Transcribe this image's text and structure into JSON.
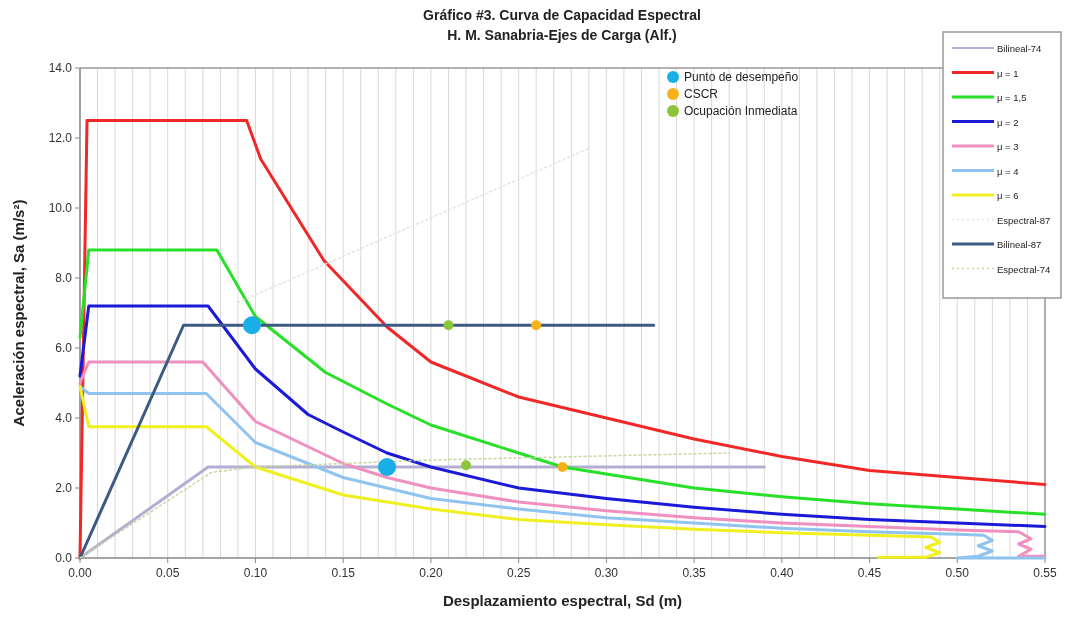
{
  "chart_data": {
    "type": "line",
    "title": "Gráfico #3. Curva de Capacidad Espectral",
    "subtitle": "H. M. Sanabria-Ejes de Carga (Alf.)",
    "xlabel": "Desplazamiento espectral, Sd (m)",
    "ylabel": "Aceleración espectral, Sa (m/s²)",
    "xlim": [
      0,
      0.55
    ],
    "ylim": [
      0,
      14
    ],
    "xticks": [
      {
        "value": 0,
        "label": "0.00"
      },
      {
        "value": 0.01,
        "label": null
      },
      {
        "value": 0.02,
        "label": null
      },
      {
        "value": 0.03,
        "label": null
      },
      {
        "value": 0.04,
        "label": null
      },
      {
        "value": 0.05,
        "label": "0.05"
      },
      {
        "value": 0.06,
        "label": null
      },
      {
        "value": 0.07,
        "label": null
      },
      {
        "value": 0.08,
        "label": null
      },
      {
        "value": 0.09,
        "label": null
      },
      {
        "value": 0.1,
        "label": "0.10"
      },
      {
        "value": 0.11,
        "label": null
      },
      {
        "value": 0.12,
        "label": null
      },
      {
        "value": 0.13,
        "label": null
      },
      {
        "value": 0.14,
        "label": null
      },
      {
        "value": 0.15,
        "label": "0.15"
      },
      {
        "value": 0.16,
        "label": null
      },
      {
        "value": 0.17,
        "label": null
      },
      {
        "value": 0.18,
        "label": null
      },
      {
        "value": 0.19,
        "label": null
      },
      {
        "value": 0.2,
        "label": "0.20"
      },
      {
        "value": 0.21,
        "label": null
      },
      {
        "value": 0.22,
        "label": null
      },
      {
        "value": 0.23,
        "label": null
      },
      {
        "value": 0.24,
        "label": null
      },
      {
        "value": 0.25,
        "label": "0.25"
      },
      {
        "value": 0.26,
        "label": null
      },
      {
        "value": 0.27,
        "label": null
      },
      {
        "value": 0.28,
        "label": null
      },
      {
        "value": 0.29,
        "label": null
      },
      {
        "value": 0.3,
        "label": "0.30"
      },
      {
        "value": 0.31,
        "label": null
      },
      {
        "value": 0.32,
        "label": null
      },
      {
        "value": 0.33,
        "label": null
      },
      {
        "value": 0.34,
        "label": null
      },
      {
        "value": 0.35,
        "label": "0.35"
      },
      {
        "value": 0.36,
        "label": null
      },
      {
        "value": 0.37,
        "label": null
      },
      {
        "value": 0.38,
        "label": null
      },
      {
        "value": 0.39,
        "label": null
      },
      {
        "value": 0.4,
        "label": "0.40"
      },
      {
        "value": 0.41,
        "label": null
      },
      {
        "value": 0.42,
        "label": null
      },
      {
        "value": 0.43,
        "label": null
      },
      {
        "value": 0.44,
        "label": null
      },
      {
        "value": 0.45,
        "label": "0.45"
      },
      {
        "value": 0.46,
        "label": null
      },
      {
        "value": 0.47,
        "label": null
      },
      {
        "value": 0.48,
        "label": null
      },
      {
        "value": 0.49,
        "label": null
      },
      {
        "value": 0.5,
        "label": "0.50"
      },
      {
        "value": 0.51,
        "label": null
      },
      {
        "value": 0.52,
        "label": null
      },
      {
        "value": 0.53,
        "label": null
      },
      {
        "value": 0.54,
        "label": null
      },
      {
        "value": 0.55,
        "label": "0.55"
      }
    ],
    "yticks": [
      {
        "value": 0,
        "label": "0.0"
      },
      {
        "value": 2,
        "label": "2.0"
      },
      {
        "value": 4,
        "label": "4.0"
      },
      {
        "value": 6,
        "label": "6.0"
      },
      {
        "value": 8,
        "label": "8.0"
      },
      {
        "value": 10,
        "label": "10.0"
      },
      {
        "value": 12,
        "label": "12.0"
      },
      {
        "value": 14,
        "label": "14.0"
      }
    ],
    "grid": "x",
    "legend": "right",
    "line_style": "solid",
    "series": [
      {
        "name": "Bilineal-74",
        "color": "#b4aed2",
        "x": [
          0,
          0.073,
          0.39
        ],
        "values": [
          0,
          2.6,
          2.6
        ]
      },
      {
        "name": "μ = 1",
        "color": "#f02828",
        "x": [
          0,
          0.004,
          0.095,
          0.103,
          0.139,
          0.175,
          0.2,
          0.25,
          0.3,
          0.35,
          0.4,
          0.45,
          0.5,
          0.55
        ],
        "values": [
          0,
          12.5,
          12.5,
          11.4,
          8.5,
          6.6,
          5.6,
          4.6,
          4.0,
          3.4,
          2.9,
          2.5,
          2.3,
          2.1
        ]
      },
      {
        "name": "μ = 1,5",
        "color": "#28e028",
        "x": [
          0,
          0.005,
          0.078,
          0.1,
          0.14,
          0.175,
          0.2,
          0.25,
          0.275,
          0.3,
          0.35,
          0.4,
          0.45,
          0.5,
          0.55
        ],
        "values": [
          6.3,
          8.8,
          8.8,
          6.9,
          5.3,
          4.4,
          3.8,
          3.0,
          2.6,
          2.4,
          2.0,
          1.75,
          1.55,
          1.4,
          1.25
        ]
      },
      {
        "name": "μ = 2",
        "color": "#1a1ad8",
        "x": [
          0,
          0.005,
          0.073,
          0.1,
          0.13,
          0.15,
          0.175,
          0.2,
          0.25,
          0.3,
          0.35,
          0.4,
          0.45,
          0.5,
          0.55
        ],
        "values": [
          5.2,
          7.2,
          7.2,
          5.4,
          4.1,
          3.6,
          3.0,
          2.6,
          2.0,
          1.7,
          1.45,
          1.25,
          1.1,
          1.0,
          0.9
        ]
      },
      {
        "name": "μ = 3",
        "color": "#f090c0",
        "x": [
          0,
          0.005,
          0.07,
          0.1,
          0.15,
          0.175,
          0.2,
          0.25,
          0.3,
          0.35,
          0.4,
          0.45,
          0.5,
          0.535,
          0.542,
          0.535,
          0.542,
          0.535,
          0.55
        ],
        "values": [
          5.0,
          5.6,
          5.6,
          3.9,
          2.7,
          2.3,
          2.0,
          1.6,
          1.35,
          1.15,
          1.0,
          0.9,
          0.8,
          0.75,
          0.55,
          0.4,
          0.25,
          0.05,
          0.05
        ]
      },
      {
        "name": "μ = 4",
        "color": "#90c4f0",
        "x": [
          0,
          0.005,
          0.072,
          0.1,
          0.15,
          0.2,
          0.25,
          0.3,
          0.35,
          0.4,
          0.45,
          0.5,
          0.515,
          0.52,
          0.512,
          0.52,
          0.512,
          0.5,
          0.55
        ],
        "values": [
          4.9,
          4.7,
          4.7,
          3.3,
          2.3,
          1.7,
          1.4,
          1.15,
          1.0,
          0.85,
          0.75,
          0.68,
          0.65,
          0.5,
          0.35,
          0.2,
          0.05,
          0.0,
          0.0
        ]
      },
      {
        "name": "μ = 6",
        "color": "#f0f020",
        "x": [
          0,
          0.005,
          0.072,
          0.1,
          0.15,
          0.2,
          0.25,
          0.3,
          0.35,
          0.4,
          0.45,
          0.485,
          0.49,
          0.482,
          0.49,
          0.482,
          0.455
        ],
        "values": [
          4.9,
          3.75,
          3.75,
          2.6,
          1.8,
          1.4,
          1.1,
          0.95,
          0.82,
          0.72,
          0.65,
          0.6,
          0.45,
          0.3,
          0.15,
          0.02,
          0.02
        ]
      },
      {
        "name": "Espectral-87",
        "color": "#e4e4e4",
        "line_style": "dotted",
        "x": [
          0.09,
          0.29
        ],
        "values": [
          7.3,
          11.7
        ]
      },
      {
        "name": "Bilineal-87",
        "color": "#3c5a82",
        "x": [
          0,
          0.059,
          0.327
        ],
        "values": [
          0,
          6.65,
          6.65
        ]
      },
      {
        "name": "Espectral-74",
        "color": "#c8d8a0",
        "line_style": "dotted",
        "x": [
          0,
          0.075,
          0.1,
          0.2,
          0.37
        ],
        "values": [
          0,
          2.45,
          2.6,
          2.8,
          3.0
        ]
      },
      {
        "name": "Punto de desempeño",
        "type": "scatter",
        "marker": "circle",
        "color": "#1aaee8",
        "x": [
          0.098,
          0.175
        ],
        "values": [
          6.65,
          2.6
        ]
      },
      {
        "name": "CSCR",
        "type": "scatter",
        "marker": "circle",
        "color": "#f5b21a",
        "x": [
          0.26,
          0.275
        ],
        "values": [
          6.65,
          2.6
        ]
      },
      {
        "name": "Ocupación Inmediata",
        "type": "scatter",
        "marker": "circle",
        "color": "#8cc43c",
        "x": [
          0.21,
          0.22
        ],
        "values": [
          6.65,
          2.65
        ]
      }
    ]
  }
}
